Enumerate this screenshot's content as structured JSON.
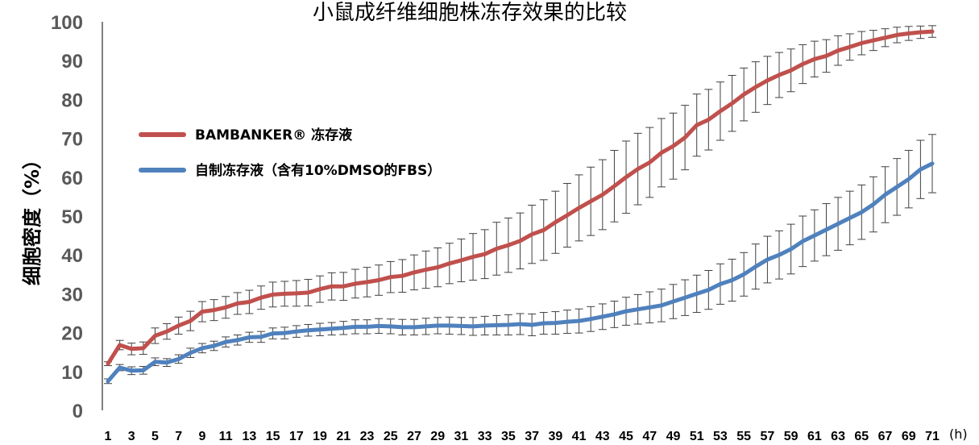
{
  "chart_data": {
    "type": "line",
    "title": "小鼠成纤维细胞株冻存效果的比较",
    "ylabel": "细胞密度（%）",
    "xlabel": "",
    "x_unit": "(h)",
    "ylim": [
      0,
      100
    ],
    "yticks": [
      0,
      10,
      20,
      30,
      40,
      50,
      60,
      70,
      80,
      90,
      100
    ],
    "xlim": [
      1,
      71
    ],
    "x_tick_labels": [
      1,
      3,
      5,
      7,
      9,
      11,
      13,
      15,
      17,
      19,
      21,
      23,
      25,
      27,
      29,
      31,
      33,
      35,
      37,
      39,
      41,
      43,
      45,
      47,
      49,
      51,
      53,
      55,
      57,
      59,
      61,
      63,
      65,
      67,
      69,
      71
    ],
    "x": [
      1,
      2,
      3,
      4,
      5,
      6,
      7,
      8,
      9,
      10,
      11,
      12,
      13,
      14,
      15,
      16,
      17,
      18,
      19,
      20,
      21,
      22,
      23,
      24,
      25,
      26,
      27,
      28,
      29,
      30,
      31,
      32,
      33,
      34,
      35,
      36,
      37,
      38,
      39,
      40,
      41,
      42,
      43,
      44,
      45,
      46,
      47,
      48,
      49,
      50,
      51,
      52,
      53,
      54,
      55,
      56,
      57,
      58,
      59,
      60,
      61,
      62,
      63,
      64,
      65,
      66,
      67,
      68,
      69,
      70,
      71
    ],
    "series": [
      {
        "name": "BAMBANKER® 冻存液",
        "color": "#c0504d",
        "values": [
          12,
          16.8,
          15.8,
          16,
          19.2,
          20.3,
          21.8,
          23,
          25.4,
          25.8,
          26.5,
          27.5,
          27.9,
          29,
          29.8,
          30,
          30.1,
          30.3,
          31.2,
          31.9,
          31.9,
          32.6,
          33,
          33.5,
          34.3,
          34.6,
          35.5,
          36.2,
          36.8,
          37.8,
          38.6,
          39.5,
          40.2,
          41.6,
          42.5,
          43.6,
          45.3,
          46.4,
          48.4,
          50.2,
          52.1,
          53.8,
          55.5,
          57.7,
          60,
          62.1,
          63.8,
          66.3,
          68,
          70.2,
          73.4,
          74.8,
          77,
          79,
          81.3,
          83.2,
          84.9,
          86.3,
          87.5,
          89.1,
          90.4,
          91.2,
          92.6,
          93.5,
          94.5,
          95.2,
          95.9,
          96.6,
          97,
          97.3,
          97.5
        ],
        "errors": [
          0.5,
          1.2,
          1.5,
          1.6,
          2,
          2,
          2.2,
          2.5,
          2.6,
          2.7,
          2.8,
          2.8,
          3,
          3,
          3.2,
          3.2,
          3.3,
          3.4,
          3.4,
          3.5,
          3.6,
          3.7,
          3.8,
          3.9,
          4,
          4.2,
          4.5,
          4.8,
          5,
          5.2,
          5.5,
          6,
          6.3,
          6.8,
          7,
          7.2,
          7.5,
          7.8,
          8,
          8.2,
          8.5,
          8.8,
          9,
          9.2,
          9.3,
          9.2,
          9,
          8.8,
          8.5,
          8.3,
          8,
          7.8,
          7.5,
          7.2,
          6.8,
          6.5,
          6.2,
          5.8,
          5.5,
          5,
          4.6,
          4.2,
          3.8,
          3.4,
          3,
          2.6,
          2.3,
          2,
          1.8,
          1.6,
          1.5
        ]
      },
      {
        "name": "自制冻存液（含有10%DMSO的FBS）",
        "color": "#4f81bd",
        "values": [
          7.5,
          11,
          10.2,
          10.3,
          12.5,
          12.3,
          13.2,
          14.8,
          16,
          16.6,
          17.6,
          18.1,
          18.8,
          18.9,
          19.8,
          19.9,
          20.3,
          20.6,
          20.8,
          21,
          21.2,
          21.5,
          21.5,
          21.7,
          21.6,
          21.4,
          21.4,
          21.6,
          21.8,
          21.8,
          21.7,
          21.6,
          21.8,
          21.9,
          22,
          22.2,
          22,
          22.4,
          22.5,
          22.8,
          23,
          23.5,
          24.1,
          24.7,
          25.5,
          26,
          26.5,
          27,
          28,
          29,
          30,
          31,
          32.5,
          33.5,
          35,
          37,
          38.8,
          40,
          41.5,
          43.5,
          45,
          46.5,
          48,
          49.5,
          51,
          53,
          55.5,
          57.5,
          59.5,
          62,
          63.5
        ],
        "errors": [
          0.6,
          0.8,
          1,
          1,
          1,
          1,
          1.1,
          1.2,
          1.2,
          1.2,
          1.3,
          1.3,
          1.3,
          1.4,
          1.4,
          1.5,
          1.5,
          1.5,
          1.6,
          1.6,
          1.7,
          1.8,
          1.8,
          1.9,
          1.9,
          2,
          2,
          2.1,
          2.1,
          2.2,
          2.2,
          2.3,
          2.4,
          2.5,
          2.6,
          2.7,
          2.8,
          2.8,
          2.9,
          3,
          3.1,
          3.2,
          3.3,
          3.4,
          3.6,
          3.8,
          4,
          4.2,
          4.4,
          4.6,
          4.8,
          5,
          5.2,
          5.4,
          5.6,
          5.8,
          6,
          6.2,
          6.4,
          6.5,
          6.6,
          6.7,
          6.8,
          6.9,
          7,
          7.1,
          7.2,
          7.3,
          7.4,
          7.5,
          7.5
        ]
      }
    ],
    "legend_position": "center-left",
    "grid": false
  }
}
